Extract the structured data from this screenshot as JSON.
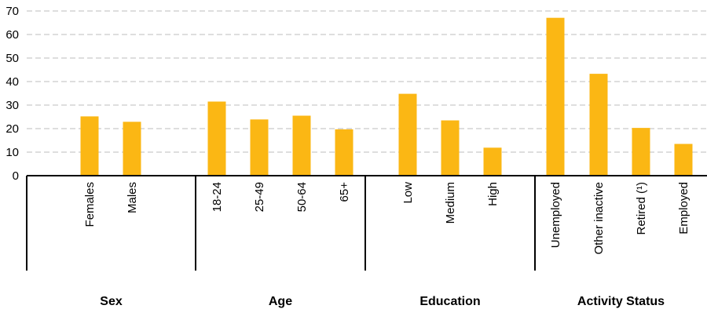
{
  "chart_data": {
    "type": "bar",
    "ylim": [
      0,
      70
    ],
    "yticks": [
      "0",
      "10",
      "20",
      "30",
      "40",
      "50",
      "60",
      "70"
    ],
    "grid": true,
    "bar_color": "#fbb714",
    "groups": [
      {
        "label": "Sex",
        "categories": [
          "Females",
          "Males"
        ],
        "values": [
          25.2,
          22.9
        ]
      },
      {
        "label": "Age",
        "categories": [
          "18-24",
          "25-49",
          "50-64",
          "65+"
        ],
        "values": [
          31.5,
          23.9,
          25.5,
          19.7
        ]
      },
      {
        "label": "Education",
        "categories": [
          "Low",
          "Medium",
          "High"
        ],
        "values": [
          34.8,
          23.5,
          11.9
        ]
      },
      {
        "label": "Activity Status",
        "categories": [
          "Unemployed",
          "Other inactive",
          "Retired (¹)",
          "Employed"
        ],
        "values": [
          67.1,
          43.3,
          20.3,
          13.5
        ]
      }
    ]
  }
}
